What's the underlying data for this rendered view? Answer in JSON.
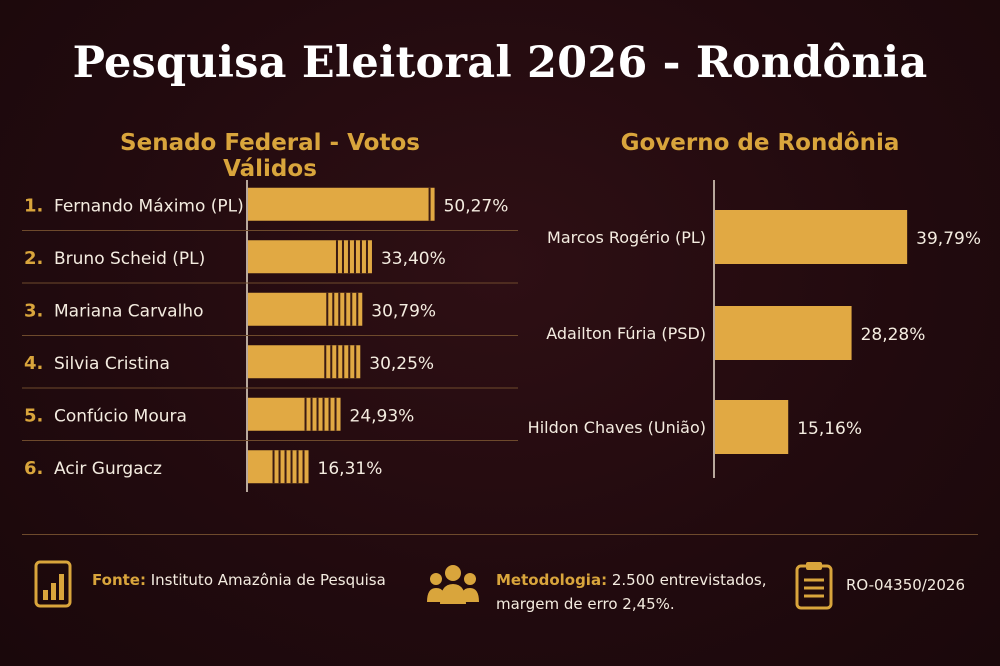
{
  "title": "Pesquisa Eleitoral 2026 - Rondônia",
  "colors": {
    "background": "#210a0e",
    "accent": "#d9a53c",
    "bar": "#e1a943",
    "text": "#f4ece0"
  },
  "chart_data": [
    {
      "type": "bar",
      "orientation": "horizontal",
      "title": "Senado Federal - Votos Válidos",
      "categories": [
        "Fernando Máximo (PL)",
        "Bruno Scheid (PL)",
        "Mariana Carvalho",
        "Silvia Cristina",
        "Confúcio Moura",
        "Acir Gurgacz"
      ],
      "ranks": [
        "1.",
        "2.",
        "3.",
        "4.",
        "5.",
        "6."
      ],
      "values": [
        50.27,
        33.4,
        30.79,
        30.25,
        24.93,
        16.31
      ],
      "value_labels": [
        "50,27%",
        "33,40%",
        "30,79%",
        "30,25%",
        "24,93%",
        "16,31%"
      ],
      "xlim": [
        0,
        52
      ]
    },
    {
      "type": "bar",
      "orientation": "horizontal",
      "title": "Governo de Rondônia",
      "categories": [
        "Marcos Rogério (PL)",
        "Adailton Fúria (PSD)",
        "Hildon Chaves (União)"
      ],
      "values": [
        39.79,
        28.28,
        15.16
      ],
      "value_labels": [
        "39,79%",
        "28,28%",
        "15,16%"
      ],
      "xlim": [
        0,
        41
      ]
    }
  ],
  "footer": {
    "fonte_label": "Fonte:",
    "fonte_text": "Instituto Amazônia de Pesquisa",
    "metodologia_label": "Metodologia:",
    "metodologia_line1": "2.500 entrevistados,",
    "metodologia_line2": "margem de erro 2,45%.",
    "registro": "RO-04350/2026",
    "icons": [
      "bar-chart-icon",
      "people-icon",
      "clipboard-icon"
    ]
  }
}
